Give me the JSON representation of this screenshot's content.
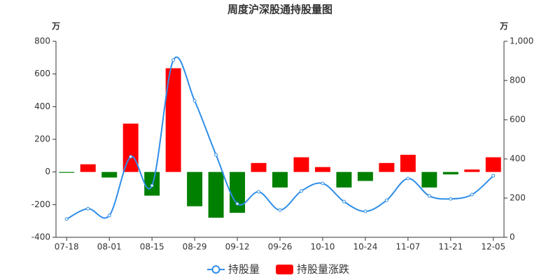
{
  "chart_data": {
    "type": "bar-line",
    "title": "周度沪深股通持股量图",
    "y_unit": "万",
    "y2_unit": "万",
    "categories": [
      "07-18",
      null,
      "08-01",
      null,
      "08-15",
      null,
      "08-29",
      null,
      "09-12",
      null,
      "09-26",
      null,
      "10-10",
      null,
      "10-24",
      null,
      "11-07",
      null,
      "11-21",
      null,
      "12-05"
    ],
    "series": [
      {
        "name": "持股量",
        "type": "line",
        "axis": "y2",
        "color": "#2f8ee8",
        "smooth": true,
        "values": [
          93,
          146,
          111,
          411,
          264,
          904,
          696,
          421,
          171,
          232,
          139,
          236,
          275,
          182,
          132,
          189,
          300,
          211,
          196,
          218,
          314
        ]
      },
      {
        "name": "持股量涨跌",
        "type": "bar",
        "axis": "y",
        "color": "#ff0000",
        "negative_color": "#008000",
        "values": [
          -5,
          47,
          -34,
          296,
          -145,
          635,
          -210,
          -280,
          -250,
          55,
          -95,
          90,
          30,
          -95,
          -55,
          55,
          105,
          -95,
          -15,
          15,
          90
        ]
      }
    ],
    "ylim": [
      -400,
      800
    ],
    "yticks": [
      -400,
      -200,
      0,
      200,
      400,
      600,
      800
    ],
    "y2lim": [
      0,
      1000
    ],
    "y2ticks": [
      0,
      200,
      400,
      600,
      800,
      {
        "value": 1000,
        "label": "1,000"
      }
    ],
    "legend": "bottom"
  }
}
